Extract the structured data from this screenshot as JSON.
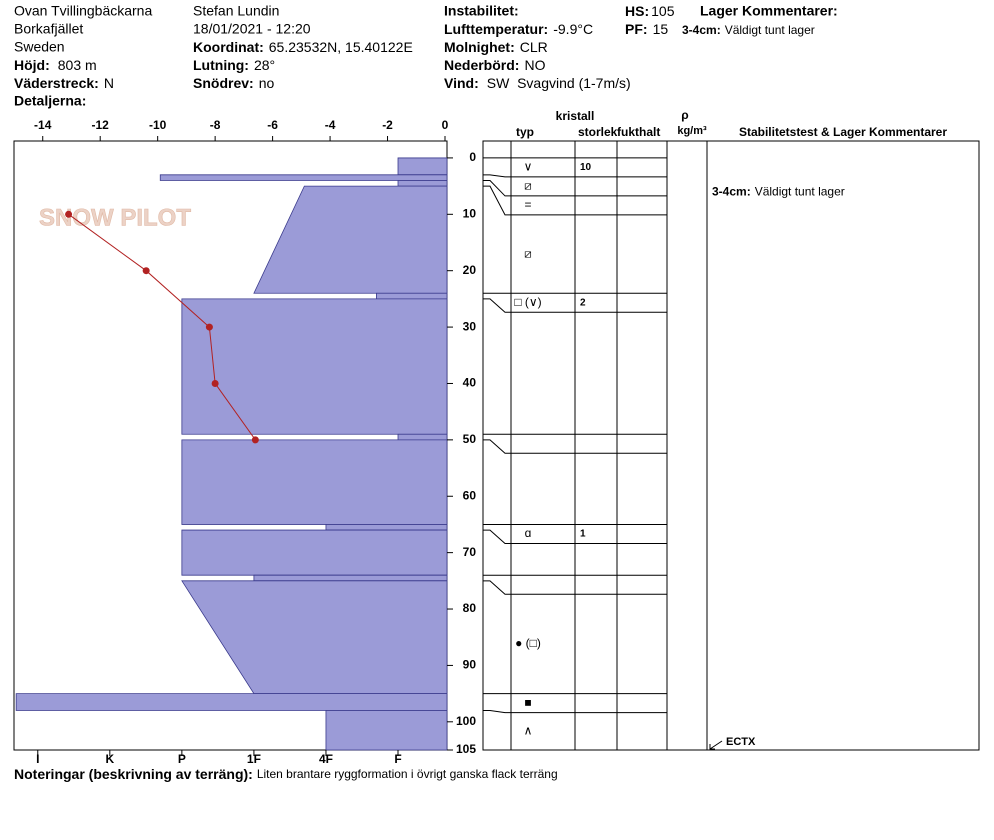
{
  "header": {
    "site": [
      "Ovan Tvillingbäckarna",
      "Borkafjället",
      "Sweden"
    ],
    "elevation": {
      "label": "Höjd:",
      "value": "803 m"
    },
    "aspect": {
      "label": "Väderstreck:",
      "value": "N"
    },
    "details": {
      "label": "Detaljerna:"
    },
    "observer": "Stefan Lundin",
    "datetime": "18/01/2021 - 12:20",
    "coordinates": {
      "label": "Koordinat:",
      "value": "65.23532N, 15.40122E"
    },
    "slope": {
      "label": "Lutning:",
      "value": "28°"
    },
    "wind_loading": {
      "label": "Snödrev:",
      "value": "no"
    },
    "instability": {
      "label": "Instabilitet:"
    },
    "air_temperature": {
      "label": "Lufttemperatur:",
      "value": "-9.9°C"
    },
    "sky": {
      "label": "Molnighet:",
      "value": "CLR"
    },
    "precipitation": {
      "label": "Nederbörd:",
      "value": "NO"
    },
    "wind": {
      "label": "Vind:",
      "value": "SW  Svagvind (1-7m/s)"
    },
    "hs": {
      "label": "HS:",
      "value": "105"
    },
    "pf": {
      "label": "PF:",
      "value": "15"
    },
    "layer_comments": {
      "label": "Lager Kommentarer:",
      "range": "3-4cm:",
      "text": "Väldigt tunt lager"
    }
  },
  "footer": {
    "label": "Noteringar (beskrivning av terräng):",
    "text": "Liten brantare ryggformation i övrigt ganska flack terräng"
  },
  "watermark": "SNOW PILOT",
  "chart_data": {
    "type": "snowprofile",
    "xlim": [
      -15,
      0
    ],
    "xticks": [
      -14,
      -12,
      -10,
      -8,
      -6,
      -4,
      -2,
      0
    ],
    "ylim": [
      -3,
      105
    ],
    "yticks": [
      0,
      10,
      20,
      30,
      40,
      50,
      60,
      70,
      80,
      90,
      100,
      105
    ],
    "hlim": [
      6.33,
      0.32
    ],
    "hticks": [
      {
        "value": 6,
        "label": "I"
      },
      {
        "value": 5,
        "label": "K"
      },
      {
        "value": 4,
        "label": "P"
      },
      {
        "value": 3,
        "label": "1F"
      },
      {
        "value": 2,
        "label": "4F"
      },
      {
        "value": 1,
        "label": "F"
      }
    ],
    "bar_color": "#9b9bd7",
    "temperature": {
      "color": "#b22222",
      "depth": [
        10,
        20,
        30,
        40,
        50
      ],
      "values": [
        -13.1,
        -10.4,
        -8.2,
        -8.0,
        -6.6
      ]
    },
    "columns": {
      "crystal": "kristall",
      "type": "typ",
      "size": "storlek",
      "moisture": "fukthalt",
      "rho": "ρ",
      "density_unit": "kg/m³",
      "comments": "Stabilitetstest & Lager Kommentarer"
    },
    "layers": [
      {
        "top": 0,
        "bottom": 3,
        "hardness_top": 1,
        "hardness_bottom": 1,
        "grain": "∨",
        "size": 10
      },
      {
        "top": 3,
        "bottom": 4,
        "hardness_top": 4.3,
        "hardness_bottom": 4.3,
        "grain": "⧄",
        "comment": {
          "range": "3-4cm:",
          "text": "Väldigt tunt lager"
        }
      },
      {
        "top": 4,
        "bottom": 5,
        "hardness_top": 1,
        "hardness_bottom": 1,
        "grain": "="
      },
      {
        "top": 5,
        "bottom": 24,
        "hardness_top": 2.3,
        "hardness_bottom": 3,
        "grain": "⧄"
      },
      {
        "top": 24,
        "bottom": 25,
        "hardness_top": 1.3,
        "hardness_bottom": 1.3,
        "grain": "□ (∨)",
        "size": 2
      },
      {
        "top": 25,
        "bottom": 49,
        "hardness_top": 4,
        "hardness_bottom": 4
      },
      {
        "top": 49,
        "bottom": 50,
        "hardness_top": 1,
        "hardness_bottom": 1
      },
      {
        "top": 50,
        "bottom": 65,
        "hardness_top": 4,
        "hardness_bottom": 4
      },
      {
        "top": 65,
        "bottom": 66,
        "hardness_top": 2,
        "hardness_bottom": 2,
        "grain": "ɑ",
        "size": 1
      },
      {
        "top": 66,
        "bottom": 74,
        "hardness_top": 4,
        "hardness_bottom": 4
      },
      {
        "top": 74,
        "bottom": 75,
        "hardness_top": 3,
        "hardness_bottom": 3
      },
      {
        "top": 75,
        "bottom": 95,
        "hardness_top": 4,
        "hardness_bottom": 3,
        "grain": "● (□)"
      },
      {
        "top": 95,
        "bottom": 98,
        "hardness_top": 6.3,
        "hardness_bottom": 6.3,
        "grain": "■"
      },
      {
        "top": 98,
        "bottom": 105,
        "hardness_top": 2,
        "hardness_bottom": 2,
        "grain": "∧"
      }
    ],
    "tests": [
      {
        "result": "ECTX"
      }
    ]
  }
}
